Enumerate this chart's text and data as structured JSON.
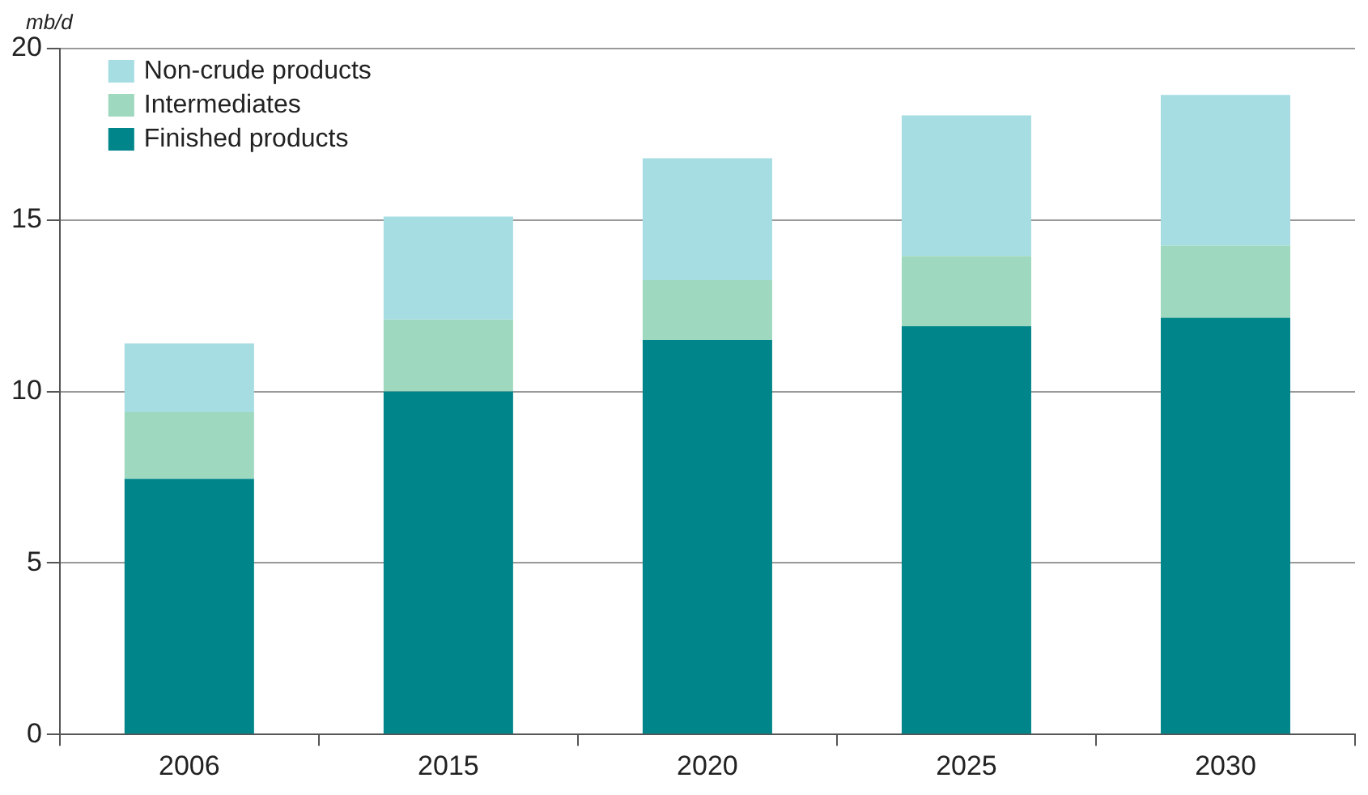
{
  "chart_data": {
    "type": "bar",
    "ylabel": "mb/d",
    "stacked": true,
    "categories": [
      "2006",
      "2015",
      "2020",
      "2025",
      "2030"
    ],
    "series": [
      {
        "name": "Finished products",
        "color": "#00868a",
        "values": [
          7.45,
          10.0,
          11.5,
          11.9,
          12.15
        ]
      },
      {
        "name": "Intermediates",
        "color": "#9ed8bf",
        "values": [
          1.95,
          2.1,
          1.75,
          2.05,
          2.1
        ]
      },
      {
        "name": "Non-crude products",
        "color": "#a6dde3",
        "values": [
          2.0,
          3.0,
          3.55,
          4.1,
          4.4
        ]
      }
    ],
    "ylim": [
      0,
      20
    ],
    "yticks": [
      0,
      5,
      10,
      15,
      20
    ],
    "grid": "y",
    "legend": "top left"
  }
}
